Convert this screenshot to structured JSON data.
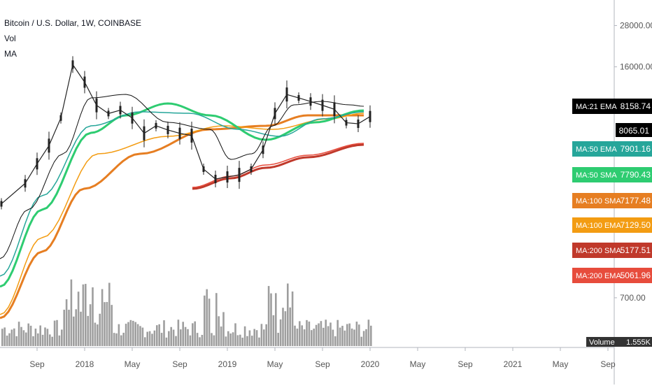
{
  "legend": {
    "symbol_line": "Bitcoin / U.S. Dollar, 1W, COINBASE",
    "vol_label": "Vol",
    "ma_label": "MA"
  },
  "colors": {
    "price_line": "#000000",
    "candle": "#222222",
    "ema21": "#111111",
    "sma21_teal": "#4aa8a0",
    "ema50": "#26a69a",
    "sma50": "#2ecc71",
    "sma100": "#e67e22",
    "ema100": "#f39c12",
    "sma200": "#c0392b",
    "ema200": "#e74c3c",
    "volume": "#9e9e9e",
    "grid": "#e0e3eb"
  },
  "chart_data": {
    "type": "line",
    "title": "Bitcoin / U.S. Dollar, 1W, COINBASE",
    "y_scale": "log",
    "ylim": [
      400,
      36000
    ],
    "y_ticks": [
      "28000.00",
      "16000.00",
      "700.00"
    ],
    "x_ticks": [
      "Sep",
      "2018",
      "May",
      "Sep",
      "2019",
      "May",
      "Sep",
      "2020",
      "May",
      "Sep",
      "2021",
      "May",
      "Sep"
    ],
    "price_line": {
      "x": [
        "2017-06",
        "2017-08",
        "2017-09",
        "2017-10",
        "2017-11",
        "2017-12",
        "2018-01",
        "2018-02",
        "2018-03",
        "2018-04",
        "2018-05",
        "2018-06",
        "2018-07",
        "2018-08",
        "2018-09",
        "2018-10",
        "2018-11",
        "2018-12",
        "2019-01",
        "2019-02",
        "2019-03",
        "2019-04",
        "2019-05",
        "2019-06",
        "2019-07",
        "2019-08",
        "2019-09",
        "2019-10",
        "2019-11",
        "2019-12",
        "2020-01"
      ],
      "y": [
        2500,
        3300,
        4300,
        5500,
        8000,
        16500,
        13000,
        9500,
        8500,
        8900,
        8000,
        6500,
        7200,
        6800,
        6500,
        6300,
        4000,
        3500,
        3600,
        3700,
        4000,
        5200,
        8500,
        11000,
        10500,
        10000,
        9500,
        9000,
        7500,
        7400,
        8158.74
      ]
    },
    "series": [
      {
        "name": "MA:21 EMA",
        "last": 8158.74
      },
      {
        "name": "MA:50 EMA",
        "last": 7901.16
      },
      {
        "name": "MA:50 SMA",
        "last": 7790.43
      },
      {
        "name": "MA:100 SMA",
        "last": 7177.48
      },
      {
        "name": "MA:100 EMA",
        "last": 7129.5
      },
      {
        "name": "MA:200 SMA",
        "last": 5177.51
      },
      {
        "name": "MA:200 EMA",
        "last": 5061.96
      }
    ],
    "price_label": "8065.01",
    "volume": {
      "label": "Volume",
      "last_value": "1.555K"
    },
    "grid": false
  }
}
